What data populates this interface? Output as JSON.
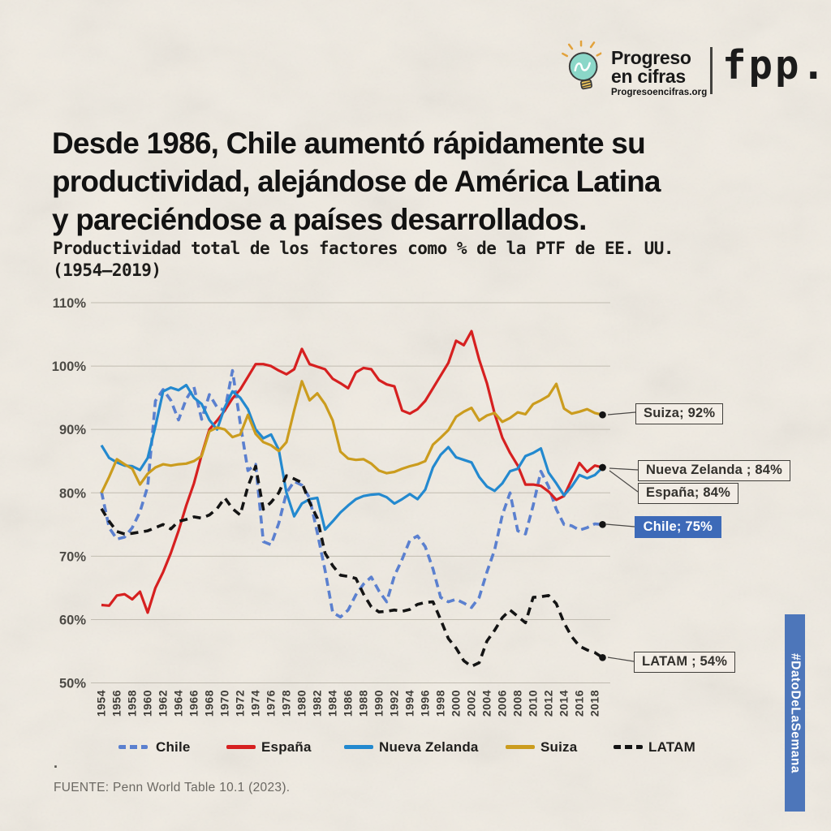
{
  "logo": {
    "brand_line1": "Progreso",
    "brand_line2": "en cifras",
    "website": "Progresoencifras.org",
    "partner": "fpp."
  },
  "headline": {
    "line1": "Desde 1986, Chile aumentó rápidamente su",
    "line2": "productividad, alejándose de América Latina",
    "line3": "y pareciéndose a países desarrollados."
  },
  "subtitle": {
    "line1": "Productividad total de los factores como % de la PTF de EE. UU.",
    "line2": "(1954–2019)"
  },
  "chart_data": {
    "type": "line",
    "title": "Productividad total de los factores como % de la PTF de EE. UU. (1954–2019)",
    "xlabel": "",
    "ylabel": "",
    "x_start": 1954,
    "x_end": 2019,
    "x_step": 1,
    "ylim": [
      50,
      110
    ],
    "grid": true,
    "legend_position": "bottom",
    "yticks": [
      "50%",
      "60%",
      "70%",
      "80%",
      "90%",
      "100%",
      "110%"
    ],
    "xticks": [
      1954,
      1956,
      1958,
      1960,
      1962,
      1964,
      1966,
      1968,
      1970,
      1972,
      1974,
      1976,
      1978,
      1980,
      1982,
      1984,
      1986,
      1988,
      1990,
      1992,
      1994,
      1996,
      1998,
      2000,
      2002,
      2004,
      2006,
      2008,
      2010,
      2012,
      2014,
      2016,
      2018
    ],
    "series": [
      {
        "name": "Chile",
        "color": "#5b80cf",
        "dash_pattern": "10 6",
        "stroke_width": 3.6,
        "values": [
          80.2,
          74.5,
          72.7,
          73,
          74.5,
          77,
          81,
          94.5,
          96.3,
          94.6,
          91.5,
          94.8,
          96.7,
          91.6,
          95.5,
          93.5,
          93,
          99.3,
          91,
          83.5,
          84.5,
          72.3,
          71.8,
          75.2,
          80,
          81.8,
          81.2,
          79.2,
          73.7,
          67.8,
          61.1,
          60.4,
          61.5,
          63.9,
          65.6,
          66.7,
          64.5,
          62.8,
          66.9,
          69.5,
          72.5,
          73.2,
          71.5,
          68,
          63.5,
          62.8,
          63.2,
          62.6,
          61.9,
          63.5,
          67.5,
          71,
          76.5,
          80,
          74,
          73.5,
          78,
          83.4,
          81,
          77.4,
          75,
          74.8,
          74.1,
          74.5,
          75.1,
          75
        ]
      },
      {
        "name": "España",
        "color": "#d62020",
        "dash_pattern": null,
        "stroke_width": 3.2,
        "values": [
          62.3,
          62.2,
          63.8,
          64,
          63.2,
          64.4,
          61.1,
          65,
          67.5,
          70.5,
          74,
          78,
          81.5,
          86,
          90,
          91.4,
          93,
          94.9,
          96.3,
          98.3,
          100.3,
          100.3,
          100,
          99.3,
          98.7,
          99.5,
          102.7,
          100.3,
          99.9,
          99.5,
          98,
          97.3,
          96.5,
          99,
          99.7,
          99.5,
          97.8,
          97.1,
          96.8,
          93,
          92.5,
          93.2,
          94.5,
          96.5,
          98.5,
          100.5,
          104,
          103.3,
          105.5,
          101,
          97.3,
          92.5,
          88.7,
          86.3,
          84.3,
          81.3,
          81.3,
          81.1,
          80.2,
          78.9,
          79.5,
          82.1,
          84.7,
          83.3,
          84.3,
          84
        ]
      },
      {
        "name": "Nueva Zelanda",
        "color": "#2389cf",
        "dash_pattern": null,
        "stroke_width": 3.2,
        "values": [
          87.5,
          85.5,
          84.8,
          84.3,
          84.2,
          83.6,
          85.5,
          90.5,
          96,
          96.6,
          96.2,
          97,
          95,
          94,
          91.5,
          90,
          93.5,
          96,
          95,
          93.2,
          90,
          88.6,
          89.2,
          86.8,
          80,
          76.3,
          78.3,
          79,
          79.2,
          74.2,
          75.5,
          76.9,
          78,
          79,
          79.5,
          79.7,
          79.8,
          79.3,
          78.3,
          79,
          79.8,
          79,
          80.5,
          84,
          86,
          87.2,
          85.6,
          85.2,
          84.8,
          82.5,
          81,
          80.3,
          81.5,
          83.4,
          83.8,
          85.8,
          86.3,
          87,
          83.2,
          81.5,
          79.6,
          81,
          82.8,
          82.3,
          82.8,
          84
        ]
      },
      {
        "name": "Suiza",
        "color": "#cb9c1e",
        "dash_pattern": null,
        "stroke_width": 3.2,
        "values": [
          80,
          82.5,
          85.3,
          84.5,
          83.8,
          81.3,
          83,
          84,
          84.5,
          84.3,
          84.5,
          84.6,
          85,
          85.8,
          89.7,
          90.3,
          90,
          88.8,
          89.2,
          92.3,
          89.3,
          88,
          87.5,
          86.6,
          88,
          93,
          97.6,
          94.6,
          95.7,
          94,
          91.4,
          86.5,
          85.4,
          85.2,
          85.3,
          84.6,
          83.5,
          83.1,
          83.3,
          83.8,
          84.2,
          84.5,
          85,
          87.6,
          88.7,
          89.9,
          92,
          92.8,
          93.4,
          91.4,
          92.2,
          92.6,
          91.2,
          91.8,
          92.7,
          92.4,
          94,
          94.6,
          95.3,
          97.2,
          93.3,
          92.5,
          92.8,
          93.2,
          92.6,
          92.3
        ]
      },
      {
        "name": "LATAM",
        "color": "#141414",
        "dash_pattern": "10 7",
        "stroke_width": 3.6,
        "values": [
          77.5,
          75.5,
          73.9,
          73.5,
          73.6,
          73.8,
          74,
          74.5,
          75,
          74.3,
          75.5,
          75.8,
          76.2,
          76,
          76.5,
          77.5,
          79.2,
          77.5,
          76.5,
          81,
          84.2,
          77.4,
          78.5,
          80,
          82.7,
          82.2,
          81.6,
          78.5,
          76,
          70.5,
          68.5,
          67,
          66.8,
          66.5,
          64,
          62,
          61.2,
          61.3,
          61.5,
          61.3,
          61.6,
          62.4,
          62.7,
          62.8,
          60,
          57,
          55.5,
          53.5,
          52.6,
          53.2,
          56.6,
          58.3,
          60.3,
          61.5,
          60.5,
          59.5,
          63.5,
          63.6,
          63.8,
          62.5,
          59.5,
          57.3,
          55.8,
          55.2,
          54.8,
          54
        ]
      }
    ],
    "end_labels": [
      {
        "text": "Suiza; 92%"
      },
      {
        "text": "Nueva Zelanda ; 84%"
      },
      {
        "text": "España; 84%"
      },
      {
        "text": "Chile; 75%"
      },
      {
        "text": "LATAM ; 54%"
      }
    ]
  },
  "footer": {
    "dot": ".",
    "source": "FUENTE: Penn World Table 10.1 (2023)."
  },
  "hashtag": "#DatoDeLaSemana",
  "colors": {
    "paper": "#f0ebe2",
    "grid": "#c1bcb1",
    "banner_blue": "#4d76ba",
    "chile_box_blue": "#3d6ab8"
  }
}
